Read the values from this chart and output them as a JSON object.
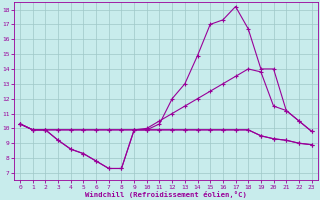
{
  "xlabel": "Windchill (Refroidissement éolien,°C)",
  "xlim": [
    -0.5,
    23.5
  ],
  "ylim": [
    6.5,
    18.5
  ],
  "xticks": [
    0,
    1,
    2,
    3,
    4,
    5,
    6,
    7,
    8,
    9,
    10,
    11,
    12,
    13,
    14,
    15,
    16,
    17,
    18,
    19,
    20,
    21,
    22,
    23
  ],
  "yticks": [
    7,
    8,
    9,
    10,
    11,
    12,
    13,
    14,
    15,
    16,
    17,
    18
  ],
  "bg_color": "#c8ecec",
  "line_color": "#990099",
  "grid_color": "#9fc8c8",
  "line1_x": [
    0,
    1,
    2,
    3,
    4,
    5,
    6,
    7,
    8,
    9,
    10,
    11,
    12,
    13,
    14,
    15,
    16,
    17,
    18,
    19,
    20,
    21,
    22,
    23
  ],
  "line1_y": [
    10.3,
    9.9,
    9.9,
    9.2,
    8.6,
    8.3,
    7.8,
    7.3,
    7.3,
    9.9,
    9.9,
    10.3,
    12.0,
    13.0,
    14.9,
    17.0,
    17.3,
    18.2,
    16.7,
    14.0,
    14.0,
    11.2,
    10.5,
    9.8
  ],
  "line2_x": [
    0,
    1,
    2,
    3,
    4,
    5,
    6,
    7,
    8,
    9,
    10,
    11,
    12,
    13,
    14,
    15,
    16,
    17,
    18,
    19,
    20,
    21,
    22,
    23
  ],
  "line2_y": [
    10.3,
    9.9,
    9.9,
    9.9,
    9.9,
    9.9,
    9.9,
    9.9,
    9.9,
    9.9,
    10.0,
    10.5,
    11.0,
    11.5,
    12.0,
    12.5,
    13.0,
    13.5,
    14.0,
    13.8,
    11.5,
    11.2,
    10.5,
    9.8
  ],
  "line3_x": [
    0,
    1,
    2,
    3,
    4,
    5,
    6,
    7,
    8,
    9,
    10,
    11,
    12,
    13,
    14,
    15,
    16,
    17,
    18,
    19,
    20,
    21,
    22,
    23
  ],
  "line3_y": [
    10.3,
    9.9,
    9.9,
    9.2,
    8.6,
    8.3,
    7.8,
    7.3,
    7.3,
    9.9,
    9.9,
    9.9,
    9.9,
    9.9,
    9.9,
    9.9,
    9.9,
    9.9,
    9.9,
    9.5,
    9.3,
    9.2,
    9.0,
    8.9
  ],
  "line4_x": [
    0,
    1,
    2,
    3,
    4,
    5,
    6,
    7,
    8,
    9,
    10,
    11,
    12,
    13,
    14,
    15,
    16,
    17,
    18,
    19,
    20,
    21,
    22,
    23
  ],
  "line4_y": [
    10.3,
    9.9,
    9.9,
    9.9,
    9.9,
    9.9,
    9.9,
    9.9,
    9.9,
    9.9,
    9.9,
    9.9,
    9.9,
    9.9,
    9.9,
    9.9,
    9.9,
    9.9,
    9.9,
    9.5,
    9.3,
    9.2,
    9.0,
    8.9
  ]
}
